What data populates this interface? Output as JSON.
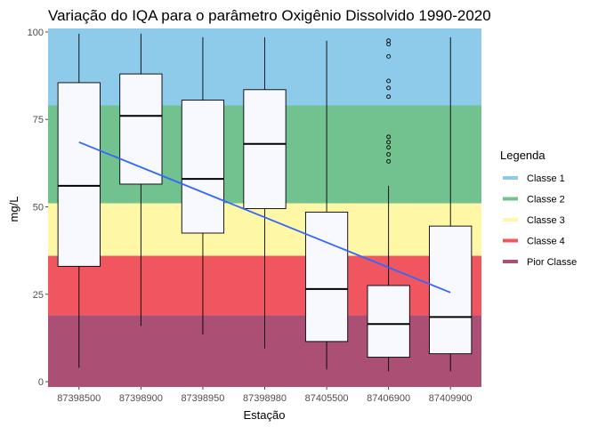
{
  "chart_data": {
    "type": "boxplot",
    "title": "Variação do IQA para o parâmetro Oxigênio Dissolvido 1990-2020",
    "xlabel": "Estação",
    "ylabel": "mg/L",
    "ylim": [
      -1.5,
      101
    ],
    "yticks": [
      0,
      25,
      50,
      75,
      100
    ],
    "categories": [
      "87398500",
      "87398900",
      "87398950",
      "87398980",
      "87405500",
      "87406900",
      "87409900"
    ],
    "boxes": [
      {
        "min": 4,
        "q1": 33,
        "median": 56,
        "q3": 85.5,
        "max": 99.5,
        "outliers": []
      },
      {
        "min": 16,
        "q1": 56.5,
        "median": 76,
        "q3": 88,
        "max": 99.5,
        "outliers": []
      },
      {
        "min": 13.5,
        "q1": 42.5,
        "median": 58,
        "q3": 80.5,
        "max": 98.5,
        "outliers": []
      },
      {
        "min": 9.5,
        "q1": 49.5,
        "median": 68,
        "q3": 83.5,
        "max": 98.5,
        "outliers": []
      },
      {
        "min": 3.5,
        "q1": 11.5,
        "median": 26.5,
        "q3": 48.5,
        "max": 97.5,
        "outliers": []
      },
      {
        "min": 3,
        "q1": 7,
        "median": 16.5,
        "q3": 27.5,
        "max": 56,
        "outliers": [
          63,
          65,
          67,
          68.5,
          70,
          81.5,
          84,
          86,
          93,
          96.5,
          97.5
        ]
      },
      {
        "min": 3,
        "q1": 8,
        "median": 18.5,
        "q3": 44.5,
        "max": 98.5,
        "outliers": []
      }
    ],
    "trend_line": {
      "start": 68.5,
      "end": 25.5,
      "color": "#3366ff"
    },
    "bands": [
      {
        "name": "Classe 1",
        "from": 79,
        "to": 101,
        "color": "#8ecbea"
      },
      {
        "name": "Classe 2",
        "from": 51,
        "to": 79,
        "color": "#71c28f"
      },
      {
        "name": "Classe 3",
        "from": 36,
        "to": 51,
        "color": "#fdf7a6"
      },
      {
        "name": "Classe 4",
        "from": 19,
        "to": 36,
        "color": "#ef5660"
      },
      {
        "name": "Pior Classe",
        "from": -1.5,
        "to": 19,
        "color": "#ab4f75"
      }
    ],
    "legend": {
      "title": "Legenda",
      "position": "right"
    },
    "box_fill": "#f8f8ff",
    "grid": false
  }
}
